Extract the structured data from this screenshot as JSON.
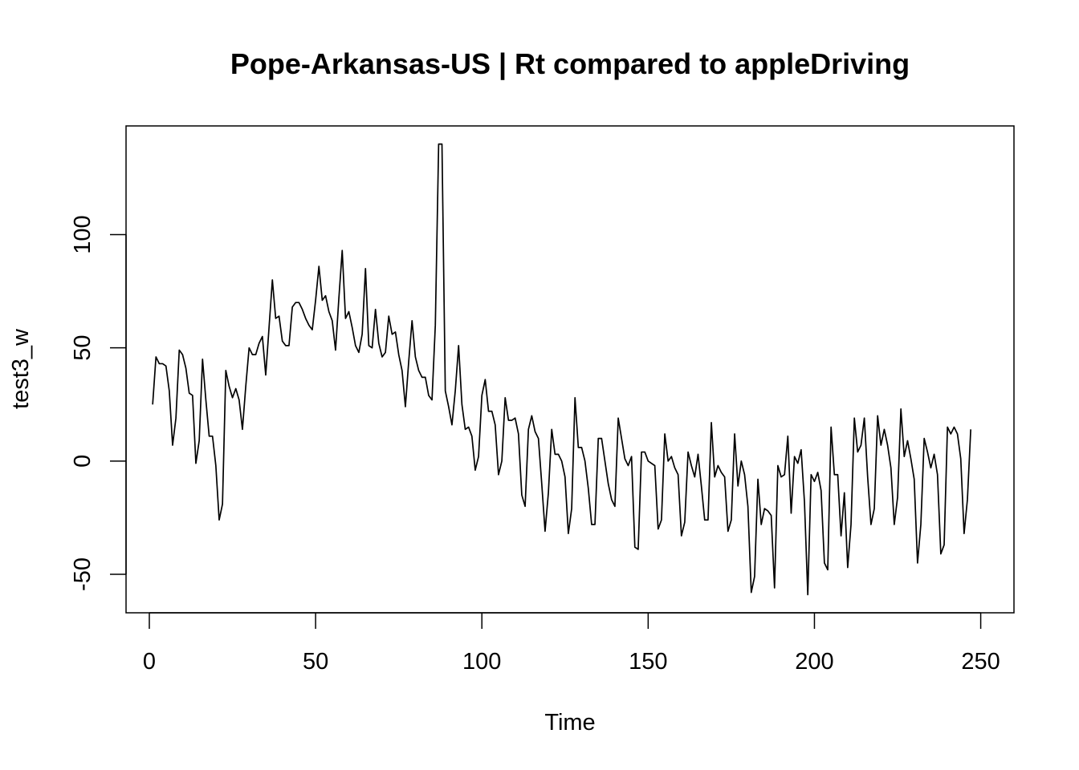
{
  "chart_data": {
    "type": "line",
    "title": "Pope-Arkansas-US | Rt compared to appleDriving",
    "xlabel": "Time",
    "ylabel": "test3_w",
    "xlim": [
      -7,
      260
    ],
    "ylim": [
      -67,
      148
    ],
    "x_ticks": [
      0,
      50,
      100,
      150,
      200,
      250
    ],
    "x_tick_labels": [
      "0",
      "50",
      "100",
      "150",
      "200",
      "250"
    ],
    "y_ticks": [
      -50,
      0,
      50,
      100
    ],
    "y_tick_labels": [
      "-50",
      "0",
      "50",
      "100"
    ],
    "grid": false,
    "legend": "none",
    "line_color": "#000000",
    "series": [
      {
        "x_start": 1,
        "x_step": 1,
        "values": [
          25,
          46,
          43,
          43,
          42,
          31,
          7,
          19,
          49,
          47,
          41,
          30,
          29,
          -1,
          9,
          45,
          27,
          11,
          11,
          -2,
          -26,
          -19,
          40,
          33,
          28,
          32,
          27,
          14,
          33,
          50,
          47,
          47,
          52,
          55,
          38,
          59,
          80,
          63,
          64,
          53,
          51,
          51,
          68,
          70,
          70,
          67,
          63,
          60,
          58,
          71,
          86,
          71,
          73,
          66,
          62,
          49,
          72,
          93,
          63,
          66,
          59,
          51,
          48,
          56,
          85,
          51,
          50,
          67,
          52,
          46,
          48,
          64,
          56,
          57,
          47,
          40,
          24,
          44,
          62,
          46,
          40,
          37,
          37,
          29,
          27,
          60,
          140,
          140,
          31,
          24,
          16,
          31,
          51,
          25,
          14,
          15,
          11,
          -4,
          2,
          29,
          36,
          22,
          22,
          16,
          -6,
          0,
          28,
          18,
          18,
          19,
          12,
          -15,
          -20,
          14,
          20,
          13,
          10,
          -10,
          -31,
          -14,
          14,
          3,
          3,
          0,
          -7,
          -32,
          -21,
          28,
          6,
          6,
          0,
          -12,
          -28,
          -28,
          10,
          10,
          0,
          -10,
          -17,
          -20,
          19,
          10,
          1,
          -2,
          2,
          -38,
          -39,
          4,
          4,
          0,
          -1,
          -2,
          -30,
          -26,
          12,
          0,
          2,
          -3,
          -6,
          -33,
          -27,
          4,
          -2,
          -7,
          3,
          -11,
          -26,
          -26,
          17,
          -7,
          -2,
          -5,
          -7,
          -31,
          -26,
          12,
          -11,
          0,
          -6,
          -20,
          -58,
          -51,
          -8,
          -28,
          -21,
          -22,
          -24,
          -56,
          -2,
          -7,
          -6,
          11,
          -23,
          2,
          -1,
          5,
          -18,
          -59,
          -6,
          -9,
          -5,
          -13,
          -45,
          -48,
          15,
          -6,
          -6,
          -33,
          -14,
          -47,
          -28,
          19,
          4,
          7,
          19,
          -7,
          -28,
          -21,
          20,
          7,
          14,
          7,
          -3,
          -28,
          -16,
          23,
          2,
          9,
          1,
          -8,
          -45,
          -28,
          10,
          4,
          -3,
          3,
          -6,
          -41,
          -37,
          15,
          12,
          15,
          12,
          1,
          -32,
          -17,
          14
        ]
      }
    ]
  }
}
